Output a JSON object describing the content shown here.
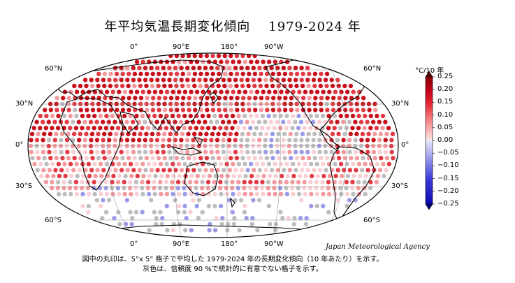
{
  "title": {
    "main": "年平均気温長期変化傾向",
    "years": "1979-2024 年"
  },
  "top_lon_labels": [
    "0°",
    "90°E",
    "180°",
    "90°W"
  ],
  "bottom_lon_labels": [
    "0°",
    "90°E",
    "180°",
    "90°W"
  ],
  "left_lat_labels": [
    "60°N",
    "30°N",
    "0°",
    "30°S",
    "60°S"
  ],
  "right_lat_labels": [
    "60°N",
    "30°N",
    "0°",
    "30°S",
    "60°S"
  ],
  "colorbar": {
    "unit": "°C/10 年",
    "ticks": [
      "0.25",
      "0.20",
      "0.15",
      "0.10",
      "0.05",
      "0.00",
      "−0.05",
      "−0.10",
      "−0.15",
      "−0.20",
      "−0.25"
    ],
    "colors_top_to_bottom": [
      "#8b0000",
      "#c0001c",
      "#e2202c",
      "#f0686c",
      "#f6a8aa",
      "#fbe0e1",
      "#dcdcf6",
      "#b0b0f0",
      "#7676e6",
      "#3c3cd8",
      "#0a0ab4"
    ]
  },
  "agency": "Japan Meteorological Agency",
  "footnote_line1": "図中の丸印は、5°x 5° 格子で平均した 1979-2024 年の長期変化傾向（10 年あたり）を示す。",
  "footnote_line2": "灰色は、信頼度 90 %で統計的に有意でない格子を示す。",
  "colors": {
    "strong": "#c8101c",
    "mid": "#e23a44",
    "light": "#f29a9e",
    "pale": "#f8cfd2",
    "insig": "#bdbdbd",
    "neg": "#9a9ae8"
  }
}
